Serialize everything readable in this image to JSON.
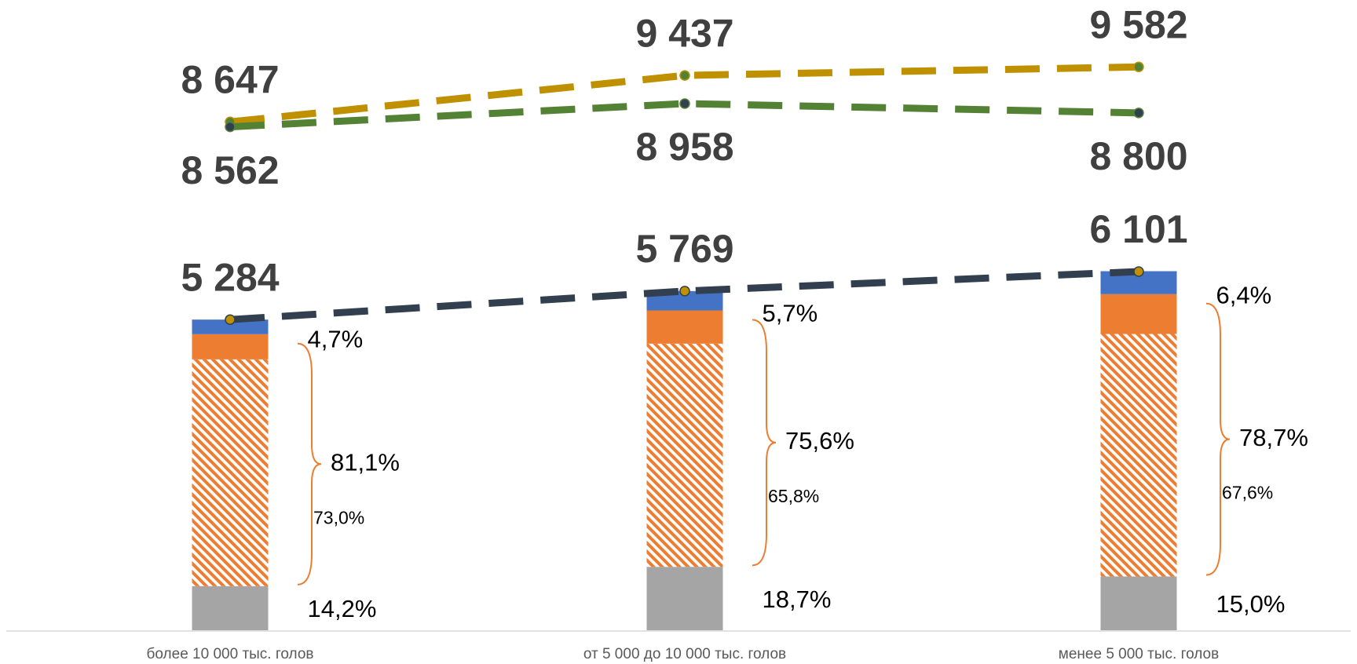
{
  "chart_data": {
    "type": "combo",
    "categories": [
      "более 10 000 тыс. голов",
      "от 5 000  до 10 000 тыс. голов",
      "менее 5 000 тыс. голов"
    ],
    "ylim": [
      0,
      10720
    ],
    "bar_series": [
      {
        "color": "#a5a5a5",
        "values": [
          14.2,
          18.7,
          15.0
        ],
        "value_labels": [
          "14,2%",
          "18,7%",
          "15,0%"
        ]
      },
      {
        "color": "#ed7d31",
        "pattern": "hatch",
        "values": [
          73.0,
          65.8,
          67.6
        ],
        "value_labels": [
          "73,0%",
          "65,8%",
          "67,6%"
        ]
      },
      {
        "color": "#ed7d31",
        "values": [
          8.1,
          9.8,
          11.1
        ]
      },
      {
        "color": "#4472c4",
        "values": [
          4.7,
          5.7,
          6.4
        ],
        "value_labels": [
          "4,7%",
          "5,7%",
          "6,4%"
        ]
      }
    ],
    "group_values": [
      81.1,
      75.6,
      78.7
    ],
    "group_labels": [
      "81,1%",
      "75,6%",
      "78,7%"
    ],
    "series": [
      {
        "color": "#bf9000",
        "marker": "#548235",
        "label_side": "above",
        "values": [
          8647,
          9437,
          9582
        ],
        "value_labels": [
          "8 647",
          "9 437",
          "9 582"
        ]
      },
      {
        "color": "#548235",
        "marker": "#323f4f",
        "label_side": "below",
        "values": [
          8562,
          8958,
          8800
        ],
        "value_labels": [
          "8 562",
          "8 958",
          "8 800"
        ]
      },
      {
        "color": "#323f4f",
        "marker": "#bf9000",
        "label_side": "above",
        "bar_total": true,
        "values": [
          5284,
          5769,
          6101
        ],
        "value_labels": [
          "5 284",
          "5 769",
          "6 101"
        ]
      }
    ]
  }
}
